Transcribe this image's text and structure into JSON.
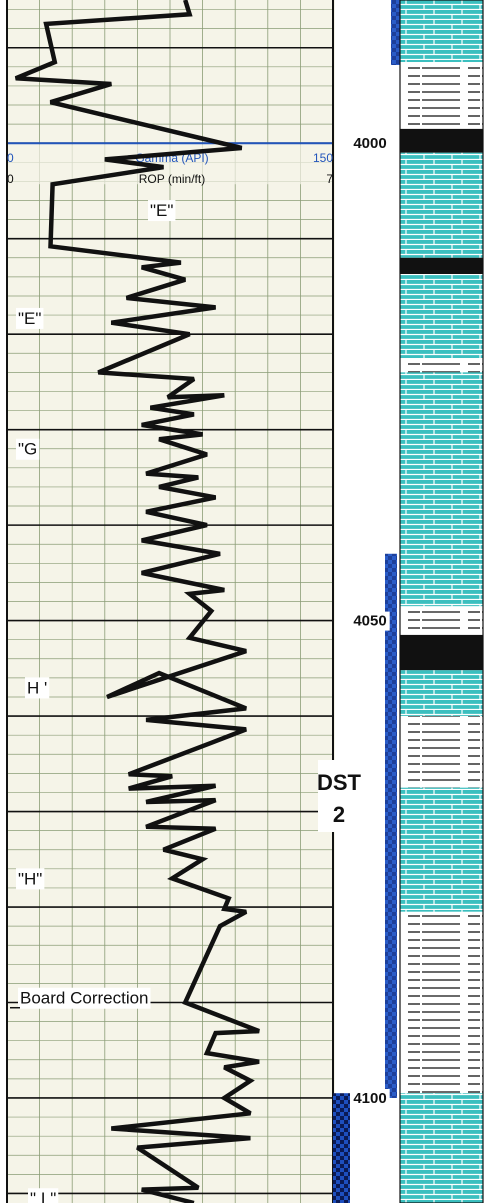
{
  "chart_data": {
    "type": "line",
    "title": "",
    "track_header": {
      "curve1": {
        "name": "Gamma (API)",
        "min": "0",
        "max": "150"
      },
      "curve2": {
        "name": "ROP (min/ft)",
        "min": "0",
        "max": "7"
      }
    },
    "xlabel": "Gamma (API)",
    "ylabel": "",
    "xlim": [
      0,
      150
    ],
    "depth_labels": [
      "4000",
      "4050",
      "4100"
    ],
    "depth_marker_values": [
      4000,
      4050,
      4100
    ],
    "y_ticks": [
      3980,
      3990,
      4000,
      4010,
      4020,
      4030,
      4040,
      4050,
      4060,
      4070,
      4080,
      4090,
      4100,
      4110
    ],
    "ylim": [
      3985,
      4111
    ],
    "grid": true,
    "series": [
      {
        "name": "Gamma (API)",
        "values": [
          [
            82,
            3985.0
          ],
          [
            84,
            3986.5
          ],
          [
            18,
            3987.5
          ],
          [
            22,
            3991.5
          ],
          [
            4,
            3993.2
          ],
          [
            48,
            3993.8
          ],
          [
            20,
            3995.7
          ],
          [
            108,
            4000.5
          ],
          [
            45,
            4001.7
          ],
          [
            72,
            4002.5
          ],
          [
            21,
            4004.3
          ],
          [
            20,
            4010.8
          ],
          [
            80,
            4012.5
          ],
          [
            62,
            4013.0
          ],
          [
            82,
            4014.3
          ],
          [
            55,
            4016.2
          ],
          [
            96,
            4017.2
          ],
          [
            48,
            4018.8
          ],
          [
            84,
            4020.0
          ],
          [
            42,
            4024.0
          ],
          [
            86,
            4024.7
          ],
          [
            74,
            4026.6
          ],
          [
            100,
            4026.4
          ],
          [
            66,
            4027.7
          ],
          [
            86,
            4028.4
          ],
          [
            62,
            4029.5
          ],
          [
            90,
            4030.5
          ],
          [
            70,
            4031.0
          ],
          [
            92,
            4032.6
          ],
          [
            64,
            4034.6
          ],
          [
            88,
            4035.0
          ],
          [
            70,
            4036.0
          ],
          [
            96,
            4037.1
          ],
          [
            64,
            4038.6
          ],
          [
            92,
            4040.0
          ],
          [
            62,
            4041.6
          ],
          [
            98,
            4043.0
          ],
          [
            62,
            4045.0
          ],
          [
            100,
            4046.8
          ],
          [
            84,
            4047.2
          ],
          [
            94,
            4049.0
          ],
          [
            84,
            4051.8
          ],
          [
            110,
            4053.2
          ],
          [
            46,
            4058.0
          ],
          [
            70,
            4055.5
          ],
          [
            110,
            4059.2
          ],
          [
            64,
            4060.4
          ],
          [
            110,
            4061.4
          ],
          [
            94,
            4062.8
          ],
          [
            56,
            4066.1
          ],
          [
            76,
            4066.3
          ],
          [
            56,
            4067.6
          ],
          [
            96,
            4067.3
          ],
          [
            64,
            4069.0
          ],
          [
            96,
            4068.8
          ],
          [
            64,
            4071.6
          ],
          [
            96,
            4071.8
          ],
          [
            72,
            4074.0
          ],
          [
            90,
            4075.0
          ],
          [
            76,
            4077.0
          ],
          [
            102,
            4079.1
          ],
          [
            100,
            4080.2
          ],
          [
            110,
            4080.5
          ],
          [
            98,
            4082.0
          ],
          [
            82,
            4090.0
          ],
          [
            116,
            4093.0
          ],
          [
            96,
            4093.2
          ],
          [
            92,
            4095.3
          ],
          [
            116,
            4096.2
          ],
          [
            100,
            4096.8
          ],
          [
            112,
            4098.2
          ],
          [
            100,
            4100.0
          ],
          [
            112,
            4101.6
          ],
          [
            48,
            4103.2
          ],
          [
            112,
            4104.2
          ],
          [
            60,
            4105.2
          ],
          [
            88,
            4109.4
          ],
          [
            62,
            4109.6
          ],
          [
            86,
            4111.0
          ]
        ]
      }
    ],
    "annotations": [
      {
        "text": "\"E\"",
        "value": 4007
      },
      {
        "text": "\"E\"",
        "value": 4018.3
      },
      {
        "text": "\"G",
        "value": 4032.0
      },
      {
        "text": "H '",
        "value": 4057.0
      },
      {
        "text": "\"H\"",
        "value": 4077.0
      },
      {
        "text": "Board Correction",
        "value": 4089.5
      },
      {
        "text": "\" I \"",
        "value": 4110.5
      }
    ],
    "dst_label": [
      "DST",
      "2"
    ],
    "intervals": {
      "dst": [
        4043,
        4100
      ],
      "tester_marker": [
        4099.5,
        4111
      ]
    },
    "lithology": [
      {
        "top": 3985,
        "bottom": 3991.5,
        "type": "limestone"
      },
      {
        "top": 3991.5,
        "bottom": 3998.5,
        "type": "shale"
      },
      {
        "top": 3998.5,
        "bottom": 4001,
        "type": "black"
      },
      {
        "top": 4001,
        "bottom": 4012,
        "type": "limestone"
      },
      {
        "top": 4012,
        "bottom": 4013.7,
        "type": "black"
      },
      {
        "top": 4013.7,
        "bottom": 4022.5,
        "type": "limestone"
      },
      {
        "top": 4022.5,
        "bottom": 4024,
        "type": "shale"
      },
      {
        "top": 4024,
        "bottom": 4048.5,
        "type": "limestone"
      },
      {
        "top": 4048.5,
        "bottom": 4051.5,
        "type": "shale"
      },
      {
        "top": 4051.5,
        "bottom": 4055.2,
        "type": "black"
      },
      {
        "top": 4055.2,
        "bottom": 4060,
        "type": "limestone"
      },
      {
        "top": 4060,
        "bottom": 4067.5,
        "type": "shale"
      },
      {
        "top": 4067.5,
        "bottom": 4080.5,
        "type": "limestone"
      },
      {
        "top": 4080.5,
        "bottom": 4099.5,
        "type": "shale"
      },
      {
        "top": 4099.5,
        "bottom": 4111,
        "type": "limestone"
      }
    ],
    "colors": {
      "curve": "#111111",
      "gamma_header": "#2255bb",
      "limestone": "#3bbfbf",
      "shale": "#ffffff",
      "black": "#111111",
      "dst_bar": "#2a5cc8",
      "tester_marker": "#1d4fbf"
    }
  }
}
